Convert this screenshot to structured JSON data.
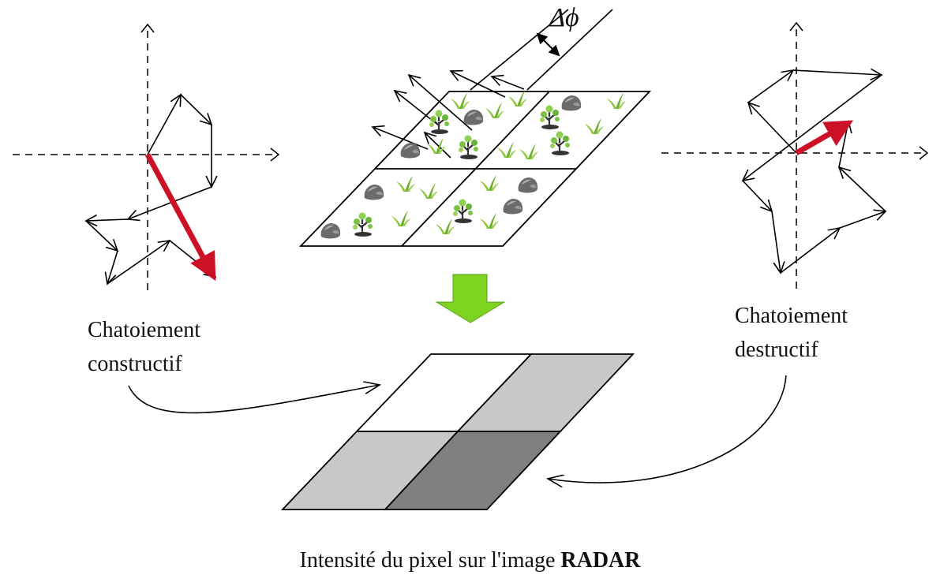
{
  "diagram": {
    "delta_symbol": "Δϕ",
    "left_label_line1": "Chatoiement",
    "left_label_line2": "constructif",
    "right_label_line1": "Chatoiement",
    "right_label_line2": "destructif",
    "caption_text": "Intensité du pixel sur l'image ",
    "caption_bold": "RADAR",
    "colors": {
      "resultant_arrow": "#cc1126",
      "down_arrow": "#7ed321",
      "pixel_white": "#ffffff",
      "pixel_light_gray": "#c8c8c8",
      "pixel_dark_gray": "#808080",
      "stroke": "#000000"
    },
    "icons": [
      "rock-icon",
      "tree-icon",
      "grass-icon"
    ]
  }
}
